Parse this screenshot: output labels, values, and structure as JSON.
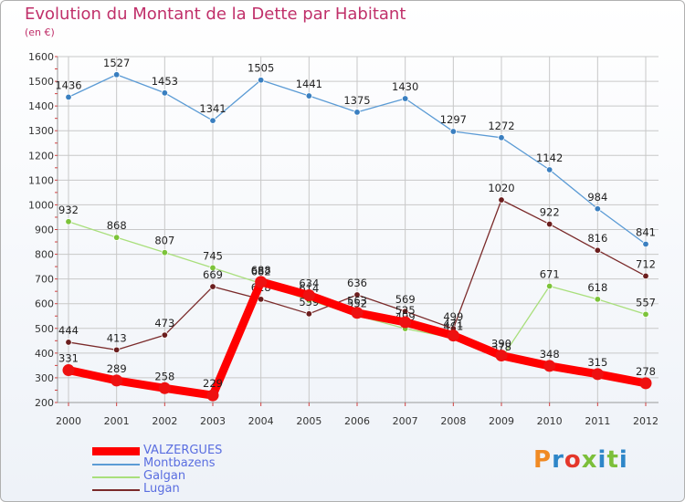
{
  "title": "Evolution du Montant de la Dette par Habitant",
  "subtitle": "(en €)",
  "logo": {
    "text": "Proxiti",
    "colors": [
      "#f08a24",
      "#2e86c8",
      "#e4372b",
      "#7cbf3a",
      "#2e86c8",
      "#7cbf3a",
      "#2e86c8"
    ]
  },
  "colors": {
    "title": "#c0306a",
    "legend_text": "#5a6ee0",
    "grid": "#c8c8c8",
    "axis_text": "#333333"
  },
  "chart_data": {
    "type": "line",
    "title": "Evolution du Montant de la Dette par Habitant",
    "subtitle": "(en €)",
    "x": [
      2000,
      2001,
      2002,
      2003,
      2004,
      2005,
      2006,
      2007,
      2008,
      2009,
      2010,
      2011,
      2012
    ],
    "ylim": [
      200,
      1600
    ],
    "yticks": [
      200,
      300,
      400,
      500,
      600,
      700,
      800,
      900,
      1000,
      1100,
      1200,
      1300,
      1400,
      1500,
      1600
    ],
    "grid": true,
    "legend_position": "bottom-left",
    "series": [
      {
        "name": "Montbazens",
        "color": "#5b9bd5",
        "marker": "#3a7fc0",
        "values": [
          1436,
          1527,
          1453,
          1341,
          1505,
          1441,
          1375,
          1430,
          1297,
          1272,
          1142,
          984,
          841
        ]
      },
      {
        "name": "Galgan",
        "color": "#a9df7c",
        "marker": "#7cc33a",
        "values": [
          932,
          868,
          807,
          745,
          682,
          614,
          552,
          499,
          461,
          378,
          671,
          618,
          557
        ]
      },
      {
        "name": "Lugan",
        "color": "#7a2a2a",
        "marker": "#6b1e1e",
        "values": [
          444,
          413,
          473,
          669,
          618,
          559,
          636,
          569,
          499,
          1020,
          922,
          816,
          712
        ]
      },
      {
        "name": "VALZERGUES",
        "color": "#ff0000",
        "marker": "#ee1111",
        "values": [
          331,
          289,
          258,
          229,
          688,
          634,
          563,
          525,
          471,
          390,
          348,
          315,
          278
        ]
      }
    ],
    "legend_order": [
      "VALZERGUES",
      "Montbazens",
      "Galgan",
      "Lugan"
    ]
  }
}
